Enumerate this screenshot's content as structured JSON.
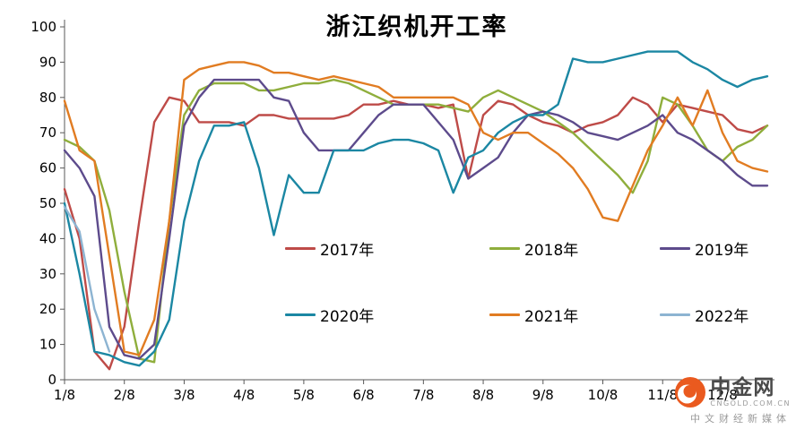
{
  "chart_data": {
    "type": "line",
    "title": "浙江织机开工率",
    "xlabel": "",
    "ylabel": "",
    "ylim": [
      0,
      100
    ],
    "y_ticks": [
      0,
      10,
      20,
      30,
      40,
      50,
      60,
      70,
      80,
      90,
      100
    ],
    "x_labels": [
      "1/8",
      "2/8",
      "3/8",
      "4/8",
      "5/8",
      "6/8",
      "7/8",
      "8/8",
      "9/8",
      "10/8",
      "11/8",
      "12/8"
    ],
    "points_per_month": 4,
    "grid": false,
    "legend_position": "inside-lower-middle",
    "series": [
      {
        "name": "2017",
        "label": "2017年",
        "color": "#BE4B48",
        "values": [
          54,
          40,
          8,
          3,
          15,
          45,
          73,
          80,
          79,
          73,
          73,
          73,
          72,
          75,
          75,
          74,
          74,
          74,
          74,
          75,
          78,
          78,
          79,
          78,
          78,
          77,
          78,
          57,
          75,
          79,
          78,
          75,
          73,
          72,
          70,
          72,
          73,
          75,
          80,
          78,
          73,
          78,
          77,
          76,
          75,
          71,
          70,
          72
        ]
      },
      {
        "name": "2018",
        "label": "2018年",
        "color": "#8FAE3C",
        "values": [
          68,
          66,
          62,
          48,
          25,
          6,
          5,
          45,
          75,
          82,
          84,
          84,
          84,
          82,
          82,
          83,
          84,
          84,
          85,
          84,
          82,
          80,
          78,
          78,
          78,
          78,
          77,
          76,
          80,
          82,
          80,
          78,
          76,
          73,
          70,
          66,
          62,
          58,
          53,
          62,
          80,
          78,
          72,
          65,
          62,
          66,
          68,
          72
        ]
      },
      {
        "name": "2019",
        "label": "2019年",
        "color": "#5D4B8C",
        "values": [
          65,
          60,
          52,
          15,
          7,
          6,
          10,
          40,
          72,
          80,
          85,
          85,
          85,
          85,
          80,
          79,
          70,
          65,
          65,
          65,
          70,
          75,
          78,
          78,
          78,
          73,
          68,
          57,
          60,
          63,
          70,
          75,
          76,
          75,
          73,
          70,
          69,
          68,
          70,
          72,
          75,
          70,
          68,
          65,
          62,
          58,
          55,
          55
        ]
      },
      {
        "name": "2020",
        "label": "2020年",
        "color": "#1B87A3",
        "values": [
          50,
          30,
          8,
          7,
          5,
          4,
          8,
          17,
          45,
          62,
          72,
          72,
          73,
          60,
          41,
          58,
          53,
          53,
          65,
          65,
          65,
          67,
          68,
          68,
          67,
          65,
          53,
          63,
          65,
          70,
          73,
          75,
          75,
          78,
          91,
          90,
          90,
          91,
          92,
          93,
          93,
          93,
          90,
          88,
          85,
          83,
          85,
          86
        ]
      },
      {
        "name": "2021",
        "label": "2021年",
        "color": "#E17C22",
        "values": [
          79,
          65,
          62,
          35,
          8,
          7,
          17,
          45,
          85,
          88,
          89,
          90,
          90,
          89,
          87,
          87,
          86,
          85,
          86,
          85,
          84,
          83,
          80,
          80,
          80,
          80,
          80,
          78,
          70,
          68,
          70,
          70,
          67,
          64,
          60,
          54,
          46,
          45,
          55,
          65,
          72,
          80,
          72,
          82,
          70,
          62,
          60,
          59
        ]
      },
      {
        "name": "2022",
        "label": "2022年",
        "color": "#8DB4D2",
        "values": [
          49,
          42,
          20,
          8,
          null,
          null,
          null,
          null,
          null,
          null,
          null,
          null,
          null,
          null,
          null,
          null,
          null,
          null,
          null,
          null,
          null,
          null,
          null,
          null,
          null,
          null,
          null,
          null,
          null,
          null,
          null,
          null,
          null,
          null,
          null,
          null,
          null,
          null,
          null,
          null,
          null,
          null,
          null,
          null,
          null,
          null,
          null,
          null
        ]
      }
    ]
  },
  "watermark": {
    "brand": "中金网",
    "url": "CNGOLD.COM.CN",
    "tagline": "中文财经新媒体"
  },
  "style": {
    "axis_color": "#595959",
    "tick_label_color": "#000000",
    "background": "#FFFFFF"
  }
}
